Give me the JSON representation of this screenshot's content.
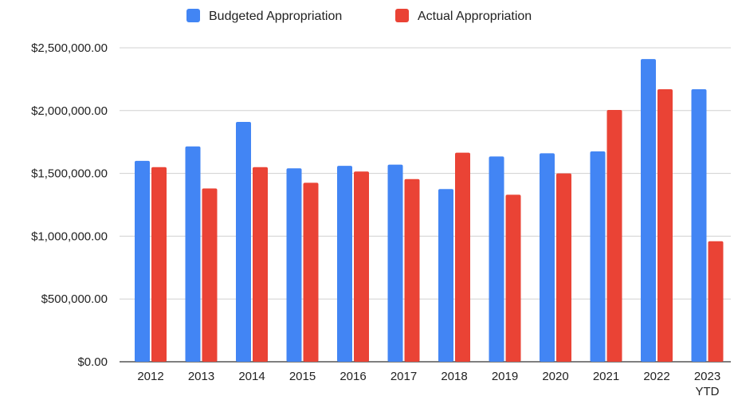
{
  "chart_data": {
    "type": "bar",
    "title": "",
    "xlabel": "",
    "ylabel": "",
    "categories": [
      "2012",
      "2013",
      "2014",
      "2015",
      "2016",
      "2017",
      "2018",
      "2019",
      "2020",
      "2021",
      "2022",
      "2023\nYTD"
    ],
    "series": [
      {
        "name": "Budgeted Appropriation",
        "color": "#4285f4",
        "values": [
          1600000,
          1715000,
          1910000,
          1540000,
          1560000,
          1570000,
          1375000,
          1635000,
          1660000,
          1675000,
          2410000,
          2170000
        ]
      },
      {
        "name": "Actual Appropriation",
        "color": "#ea4335",
        "values": [
          1550000,
          1380000,
          1550000,
          1425000,
          1515000,
          1455000,
          1665000,
          1330000,
          1500000,
          2005000,
          2170000,
          960000
        ]
      }
    ],
    "ylim": [
      0,
      2500000
    ],
    "yticks": [
      0,
      500000,
      1000000,
      1500000,
      2000000,
      2500000
    ],
    "ytick_labels": [
      "$0.00",
      "$500,000.00",
      "$1,000,000.00",
      "$1,500,000.00",
      "$2,000,000.00",
      "$2,500,000.00"
    ],
    "grid": true,
    "legend_position": "top"
  }
}
